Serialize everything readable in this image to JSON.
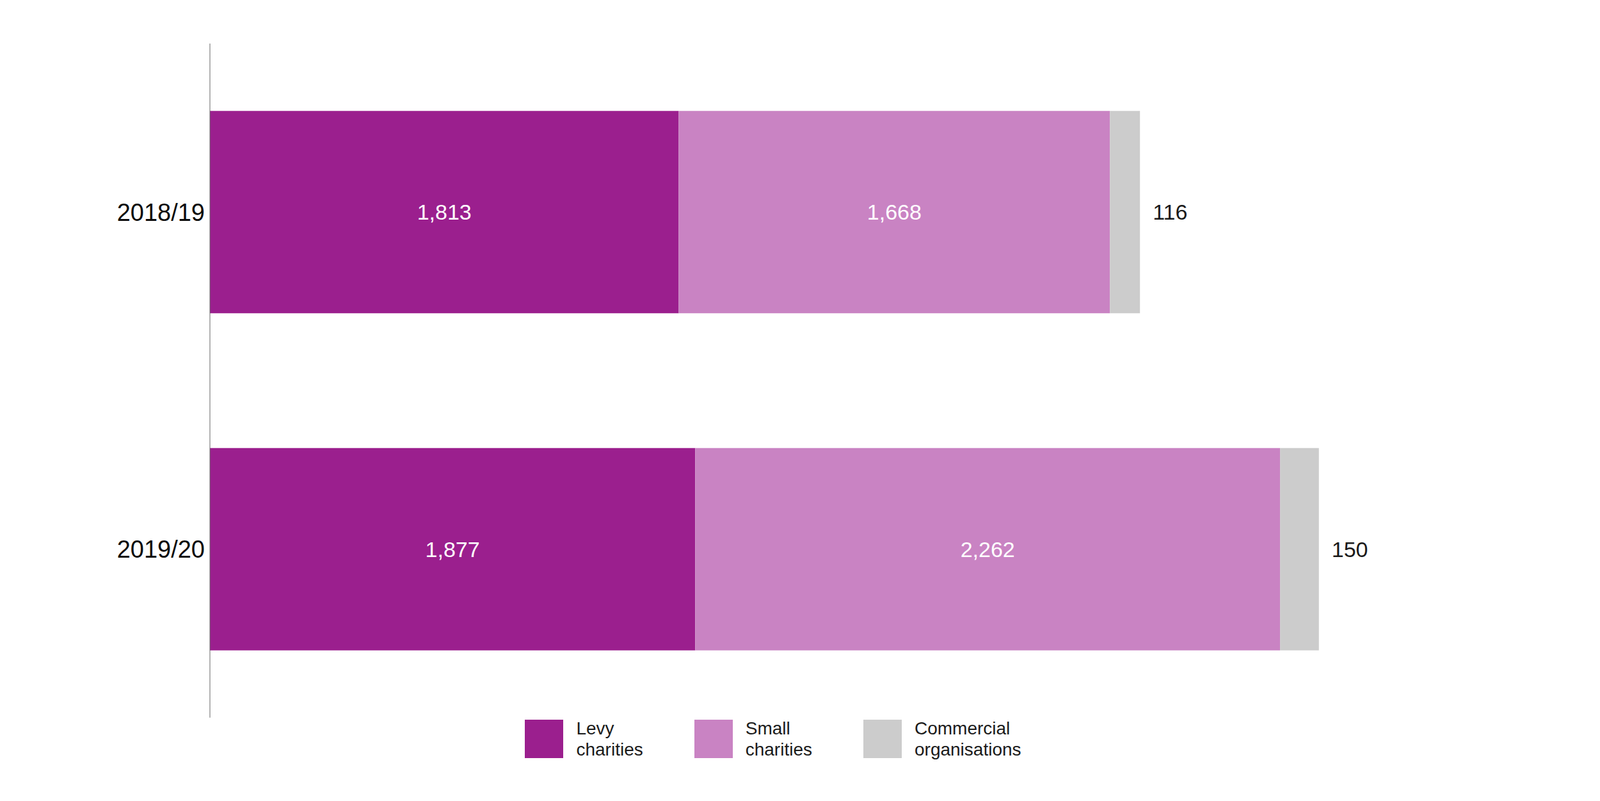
{
  "chart_data": {
    "type": "bar",
    "orientation": "horizontal",
    "stacked": true,
    "data_labels": true,
    "tick_labels": "y",
    "legend": "bottom",
    "grid": false,
    "categories": [
      "2018/19",
      "2019/20"
    ],
    "xlim": [
      0,
      5000
    ],
    "series": [
      {
        "name": "Levy\ncharities",
        "color": "#9B1F8E",
        "values": [
          1813,
          1877
        ],
        "value_labels": [
          "1,813",
          "1,877"
        ]
      },
      {
        "name": "Small\ncharities",
        "color": "#C983C3",
        "values": [
          1668,
          2262
        ],
        "value_labels": [
          "1,668",
          "2,262"
        ]
      },
      {
        "name": "Commercial\norganisations",
        "color": "#CCCCCC",
        "values": [
          116,
          150
        ]
      }
    ]
  }
}
